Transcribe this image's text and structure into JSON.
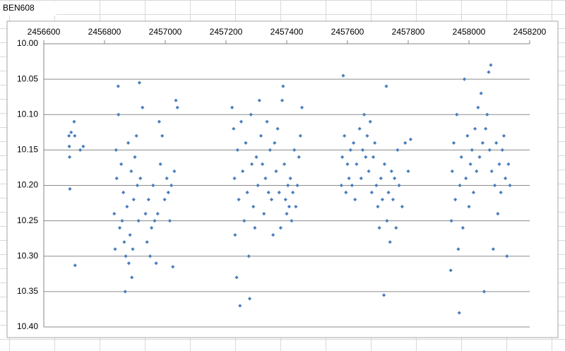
{
  "cell_a1": "BEN608",
  "chart_data": {
    "type": "scatter",
    "color": "#4a7ebb",
    "grid": "y",
    "y_reversed": true,
    "x_axis_position": "top",
    "xlim": [
      2456600,
      2458200
    ],
    "xticks": [
      2456600,
      2456800,
      2457000,
      2457200,
      2457400,
      2457600,
      2457800,
      2458000,
      2458200
    ],
    "ylim": [
      10.0,
      10.4
    ],
    "yticks": [
      {
        "value": 10.0,
        "label": "10.00"
      },
      10.05,
      {
        "value": 10.1,
        "label": "10.10"
      },
      10.15,
      {
        "value": 10.2,
        "label": "10.20"
      },
      10.25,
      {
        "value": 10.3,
        "label": "10.30"
      },
      10.35,
      {
        "value": 10.4,
        "label": "10.40"
      }
    ],
    "x": [
      2456683,
      2456684,
      2456685,
      2456686,
      2456690,
      2456700,
      2456702,
      2456703,
      2456720,
      2456730,
      2456832,
      2456835,
      2456838,
      2456840,
      2456845,
      2456846,
      2456850,
      2456855,
      2456858,
      2456862,
      2456865,
      2456868,
      2456870,
      2456874,
      2456878,
      2456880,
      2456884,
      2456888,
      2456890,
      2456893,
      2456896,
      2456900,
      2456905,
      2456908,
      2456912,
      2456915,
      2456918,
      2456925,
      2456935,
      2456940,
      2456945,
      2456950,
      2456955,
      2456960,
      2456965,
      2456970,
      2456975,
      2456980,
      2456984,
      2456990,
      2456998,
      2457005,
      2457010,
      2457015,
      2457020,
      2457025,
      2457030,
      2457035,
      2457040,
      2457220,
      2457225,
      2457228,
      2457230,
      2457235,
      2457238,
      2457242,
      2457246,
      2457250,
      2457255,
      2457260,
      2457265,
      2457270,
      2457275,
      2457278,
      2457282,
      2457285,
      2457290,
      2457295,
      2457300,
      2457305,
      2457310,
      2457315,
      2457320,
      2457325,
      2457330,
      2457335,
      2457340,
      2457345,
      2457350,
      2457355,
      2457360,
      2457365,
      2457370,
      2457375,
      2457380,
      2457385,
      2457388,
      2457392,
      2457396,
      2457400,
      2457404,
      2457408,
      2457412,
      2457416,
      2457420,
      2457425,
      2457430,
      2457435,
      2457440,
      2457445,
      2457450,
      2457580,
      2457583,
      2457586,
      2457590,
      2457595,
      2457600,
      2457605,
      2457610,
      2457615,
      2457620,
      2457625,
      2457630,
      2457640,
      2457645,
      2457650,
      2457655,
      2457660,
      2457665,
      2457670,
      2457675,
      2457680,
      2457685,
      2457690,
      2457695,
      2457700,
      2457705,
      2457710,
      2457715,
      2457720,
      2457722,
      2457728,
      2457730,
      2457735,
      2457740,
      2457745,
      2457750,
      2457755,
      2457760,
      2457765,
      2457770,
      2457780,
      2457790,
      2457800,
      2457808,
      2457940,
      2457942,
      2457945,
      2457950,
      2457955,
      2457960,
      2457965,
      2457968,
      2457970,
      2457975,
      2457980,
      2457985,
      2457990,
      2457995,
      2458000,
      2458005,
      2458010,
      2458015,
      2458020,
      2458025,
      2458030,
      2458035,
      2458040,
      2458045,
      2458050,
      2458055,
      2458060,
      2458065,
      2458068,
      2458072,
      2458075,
      2458080,
      2458085,
      2458090,
      2458095,
      2458100,
      2458105,
      2458110,
      2458115,
      2458120,
      2458125,
      2458130,
      2458135
    ],
    "values": [
      10.13,
      10.145,
      10.16,
      10.205,
      10.125,
      10.11,
      10.13,
      10.313,
      10.15,
      10.145,
      10.24,
      10.29,
      10.15,
      10.19,
      10.06,
      10.1,
      10.26,
      10.17,
      10.25,
      10.21,
      10.28,
      10.35,
      10.3,
      10.23,
      10.14,
      10.31,
      10.27,
      10.18,
      10.33,
      10.29,
      10.22,
      10.16,
      10.13,
      10.2,
      10.25,
      10.055,
      10.19,
      10.09,
      10.24,
      10.28,
      10.22,
      10.3,
      10.26,
      10.2,
      10.25,
      10.31,
      10.24,
      10.11,
      10.17,
      10.13,
      10.22,
      10.19,
      10.21,
      10.25,
      10.2,
      10.315,
      10.18,
      10.08,
      10.09,
      10.09,
      10.12,
      10.19,
      10.27,
      10.33,
      10.15,
      10.22,
      10.37,
      10.11,
      10.18,
      10.25,
      10.14,
      10.21,
      10.3,
      10.36,
      10.1,
      10.17,
      10.23,
      10.26,
      10.16,
      10.2,
      10.08,
      10.13,
      10.17,
      10.24,
      10.19,
      10.11,
      10.21,
      10.15,
      10.22,
      10.27,
      10.14,
      10.18,
      10.12,
      10.21,
      10.26,
      10.08,
      10.06,
      10.17,
      10.22,
      10.24,
      10.2,
      10.23,
      10.19,
      10.25,
      10.21,
      10.15,
      10.23,
      10.2,
      10.16,
      10.13,
      10.09,
      10.2,
      10.16,
      10.045,
      10.13,
      10.21,
      10.17,
      10.19,
      10.15,
      10.2,
      10.14,
      10.22,
      10.17,
      10.12,
      10.19,
      10.15,
      10.1,
      10.16,
      10.13,
      10.18,
      10.11,
      10.21,
      10.16,
      10.14,
      10.2,
      10.23,
      10.26,
      10.19,
      10.22,
      10.355,
      10.17,
      10.06,
      10.25,
      10.21,
      10.28,
      10.18,
      10.22,
      10.19,
      10.26,
      10.15,
      10.2,
      10.23,
      10.14,
      10.18,
      10.135,
      10.32,
      10.25,
      10.18,
      10.14,
      10.22,
      10.1,
      10.29,
      10.38,
      10.2,
      10.16,
      10.26,
      10.05,
      10.19,
      10.13,
      10.23,
      10.17,
      10.15,
      10.21,
      10.12,
      10.18,
      10.09,
      10.16,
      10.07,
      10.14,
      10.35,
      10.12,
      10.1,
      10.04,
      10.15,
      10.03,
      10.18,
      10.29,
      10.2,
      10.14,
      10.24,
      10.17,
      10.21,
      10.15,
      10.13,
      10.19,
      10.3,
      10.17,
      10.2
    ]
  }
}
